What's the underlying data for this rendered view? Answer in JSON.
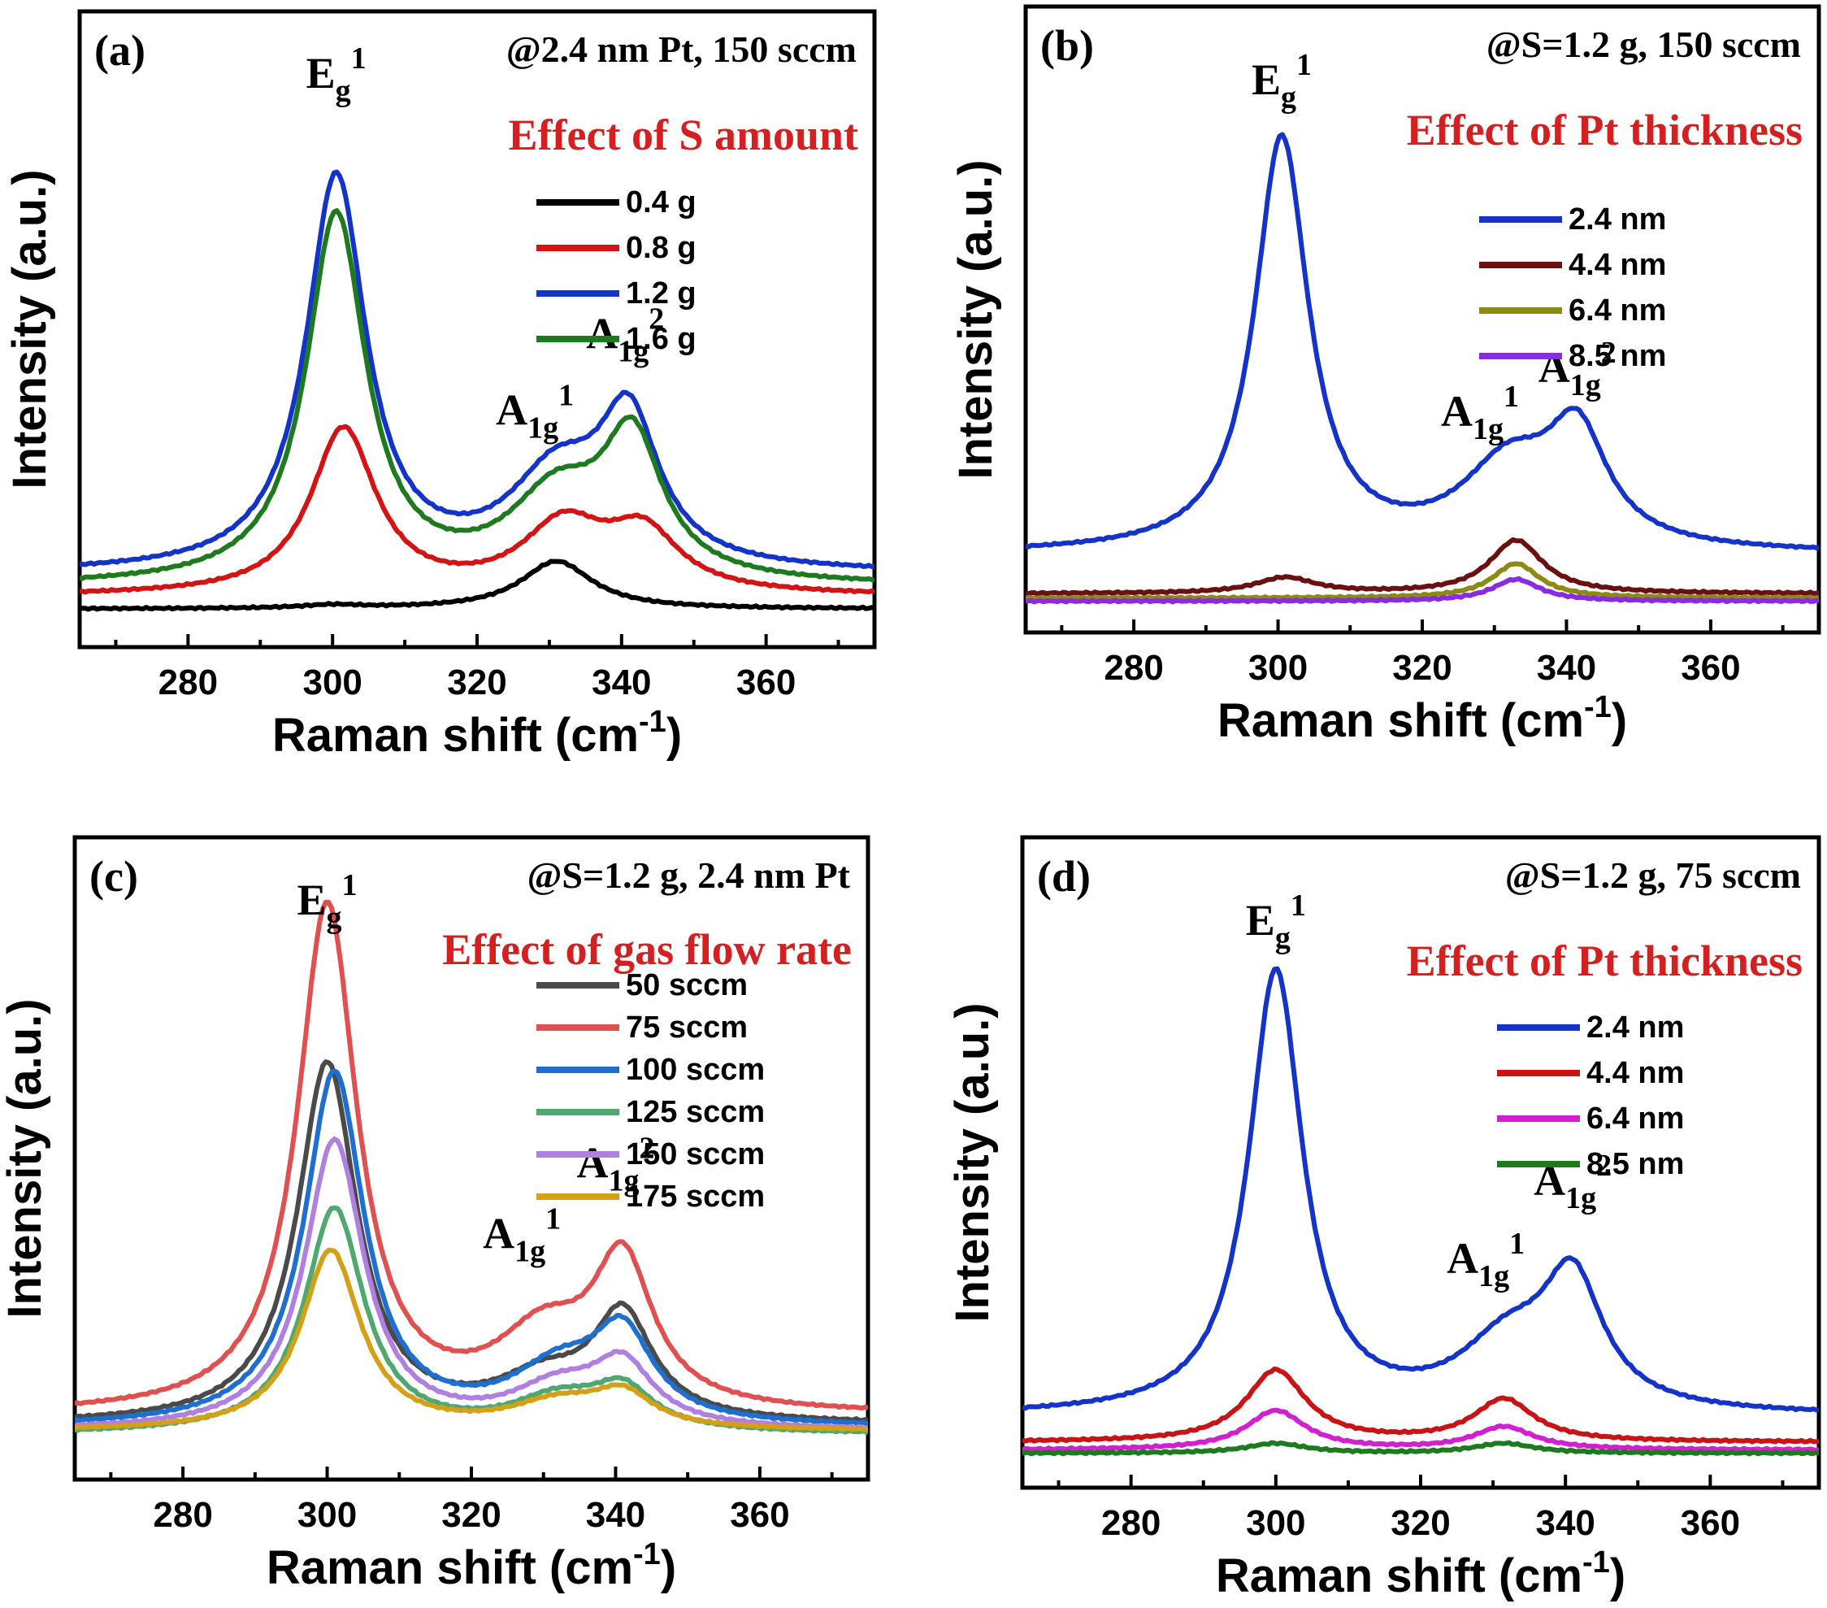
{
  "chart_data": [
    {
      "type": "line",
      "panel_label": "(a)",
      "condition": "@2.4 nm Pt, 150 sccm",
      "effect_title": "Effect of S amount",
      "xlabel": "Raman shift (cm",
      "xlabel_sup": "-1",
      "xlabel_close": ")",
      "ylabel": "Intensity (a.u.)",
      "xlim": [
        265,
        375
      ],
      "ylim": [
        0,
        100
      ],
      "xticks": [
        "280",
        "300",
        "320",
        "340",
        "360"
      ],
      "peak_labels": [
        {
          "base": "E",
          "sub": "g",
          "sup": "1",
          "x": 300.5,
          "y": 88
        },
        {
          "base": "A",
          "sub": "1g",
          "sup": "1",
          "x": 328,
          "y": 35
        },
        {
          "base": "A",
          "sub": "1g",
          "sup": "2",
          "x": 340.5,
          "y": 47
        }
      ],
      "series": [
        {
          "name": "0.4 g",
          "color": "#000000",
          "baseline": 1.0,
          "offset": 0,
          "peaks": [
            [
              331,
              7.5,
              6
            ],
            [
              300,
              0.5,
              5
            ]
          ]
        },
        {
          "name": "0.8 g",
          "color": "#d41414",
          "baseline": 3.0,
          "offset": 0,
          "peaks": [
            [
              301.5,
              26,
              5.5
            ],
            [
              332,
              10.5,
              7
            ],
            [
              343,
              9,
              6
            ]
          ]
        },
        {
          "name": "1.2 g",
          "color": "#1433c8",
          "baseline": 6.5,
          "offset": 0,
          "peaks": [
            [
              300.5,
              62,
              5
            ],
            [
              331,
              14,
              8
            ],
            [
              341,
              22,
              5
            ]
          ]
        },
        {
          "name": "1.6 g",
          "color": "#1e7a1e",
          "baseline": 4.5,
          "offset": 0,
          "peaks": [
            [
              300.5,
              58,
              5
            ],
            [
              331,
              13,
              8
            ],
            [
              341.5,
              21,
              5
            ]
          ]
        }
      ]
    },
    {
      "type": "line",
      "panel_label": "(b)",
      "condition": "@S=1.2 g, 150 sccm",
      "effect_title": "Effect of Pt thickness",
      "xlabel": "Raman shift (cm",
      "xlabel_sup": "-1",
      "xlabel_close": ")",
      "ylabel": "Intensity (a.u.)",
      "xlim": [
        265,
        375
      ],
      "ylim": [
        0,
        100
      ],
      "xticks": [
        "280",
        "300",
        "320",
        "340",
        "360"
      ],
      "peak_labels": [
        {
          "base": "E",
          "sub": "g",
          "sup": "1",
          "x": 300.5,
          "y": 86
        },
        {
          "base": "A",
          "sub": "1g",
          "sup": "1",
          "x": 328,
          "y": 33
        },
        {
          "base": "A",
          "sub": "1g",
          "sup": "2",
          "x": 341.5,
          "y": 40
        }
      ],
      "series": [
        {
          "name": "2.4 nm",
          "color": "#1433c8",
          "baseline": 7.5,
          "offset": 0,
          "peaks": [
            [
              300.5,
              66,
              4.5
            ],
            [
              332,
              13,
              8
            ],
            [
              341.5,
              17,
              5
            ]
          ]
        },
        {
          "name": "4.4 nm",
          "color": "#6b1010",
          "baseline": 1.2,
          "offset": 0,
          "peaks": [
            [
              301,
              2.5,
              5
            ],
            [
              333,
              8.5,
              4.5
            ]
          ]
        },
        {
          "name": "6.4 nm",
          "color": "#8a8a14",
          "baseline": 0.5,
          "offset": 0,
          "peaks": [
            [
              333,
              5.5,
              4
            ]
          ]
        },
        {
          "name": "8.5 nm",
          "color": "#8a2be2",
          "baseline": 0.0,
          "offset": 0,
          "peaks": [
            [
              333,
              3.5,
              4
            ]
          ]
        }
      ]
    },
    {
      "type": "line",
      "panel_label": "(c)",
      "condition": "@S=1.2 g, 2.4 nm Pt",
      "effect_title": "Effect of gas flow rate",
      "xlabel": "Raman shift (cm",
      "xlabel_sup": "-1",
      "xlabel_close": ")",
      "ylabel": "Intensity (a.u.)",
      "xlim": [
        265,
        375
      ],
      "ylim": [
        0,
        100
      ],
      "xticks": [
        "280",
        "300",
        "320",
        "340",
        "360"
      ],
      "peak_labels": [
        {
          "base": "E",
          "sub": "g",
          "sup": "1",
          "x": 300,
          "y": 88
        },
        {
          "base": "A",
          "sub": "1g",
          "sup": "1",
          "x": 327,
          "y": 36
        },
        {
          "base": "A",
          "sub": "1g",
          "sup": "2",
          "x": 340,
          "y": 47
        }
      ],
      "series": [
        {
          "name": "50 sccm",
          "color": "#4a4a4a",
          "baseline": 3.5,
          "offset": 0,
          "peaks": [
            [
              300,
              56,
              5
            ],
            [
              330,
              6,
              8
            ],
            [
              341,
              16,
              5
            ]
          ]
        },
        {
          "name": "75 sccm",
          "color": "#e05050",
          "baseline": 5.0,
          "offset": 0,
          "peaks": [
            [
              300,
              79,
              5
            ],
            [
              330,
              11,
              8
            ],
            [
              341,
              22,
              5
            ]
          ]
        },
        {
          "name": "100 sccm",
          "color": "#1f6fd0",
          "baseline": 3.0,
          "offset": 0,
          "peaks": [
            [
              301,
              55,
              5
            ],
            [
              332,
              8,
              8
            ],
            [
              341,
              13,
              5
            ]
          ]
        },
        {
          "name": "125 sccm",
          "color": "#4fa870",
          "baseline": 2.0,
          "offset": 0,
          "peaks": [
            [
              301,
              35,
              5
            ],
            [
              332,
              5,
              8
            ],
            [
              341,
              6,
              5
            ]
          ]
        },
        {
          "name": "150 sccm",
          "color": "#b080e0",
          "baseline": 2.5,
          "offset": 0,
          "peaks": [
            [
              301,
              45,
              5
            ],
            [
              332,
              6,
              8
            ],
            [
              341,
              9,
              5
            ]
          ]
        },
        {
          "name": "175 sccm",
          "color": "#d4a017",
          "baseline": 2.5,
          "offset": 0,
          "peaks": [
            [
              300.5,
              28,
              5
            ],
            [
              332,
              4,
              8
            ],
            [
              341,
              5,
              5
            ]
          ]
        }
      ]
    },
    {
      "type": "line",
      "panel_label": "(d)",
      "condition": "@S=1.2 g, 75 sccm",
      "effect_title": "Effect of Pt thickness",
      "xlabel": "Raman shift (cm",
      "xlabel_sup": "-1",
      "xlabel_close": ")",
      "ylabel": "Intensity (a.u.)",
      "xlim": [
        265,
        375
      ],
      "ylim": [
        0,
        100
      ],
      "xticks": [
        "280",
        "300",
        "320",
        "340",
        "360"
      ],
      "peak_labels": [
        {
          "base": "E",
          "sub": "g",
          "sup": "1",
          "x": 300,
          "y": 85
        },
        {
          "base": "A",
          "sub": "1g",
          "sup": "1",
          "x": 329,
          "y": 33
        },
        {
          "base": "A",
          "sub": "1g",
          "sup": "2",
          "x": 341,
          "y": 45
        }
      ],
      "series": [
        {
          "name": "2.4 nm",
          "color": "#1433c8",
          "baseline": 6.0,
          "offset": 0,
          "peaks": [
            [
              300,
              68,
              4.5
            ],
            [
              332,
              10,
              8
            ],
            [
              341,
              19,
              5
            ]
          ]
        },
        {
          "name": "4.4 nm",
          "color": "#c81414",
          "baseline": 2.0,
          "offset": 0,
          "peaks": [
            [
              300,
              11,
              5
            ],
            [
              331.5,
              6.5,
              5
            ]
          ]
        },
        {
          "name": "6.4 nm",
          "color": "#d020d0",
          "baseline": 0.8,
          "offset": 0,
          "peaks": [
            [
              300,
              6,
              5
            ],
            [
              331.5,
              3.5,
              5
            ]
          ]
        },
        {
          "name": "8.5 nm",
          "color": "#1e7a1e",
          "baseline": 0.3,
          "offset": 0,
          "peaks": [
            [
              300,
              1.5,
              5
            ],
            [
              331.5,
              1.5,
              5
            ]
          ]
        }
      ]
    }
  ]
}
